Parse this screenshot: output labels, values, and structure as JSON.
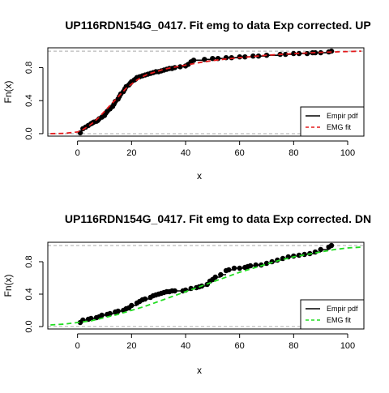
{
  "chart_data": [
    {
      "type": "line",
      "title": "UP116RDN154G_0417. Fit emg to data Exp corrected. UP",
      "xlabel": "x",
      "ylabel": "Fn(x)",
      "xlim": [
        -11,
        106
      ],
      "ylim": [
        -0.03,
        1.04
      ],
      "xticks": [
        0,
        20,
        40,
        60,
        80,
        100
      ],
      "yticks": [
        0.0,
        0.4,
        0.8
      ],
      "ytick_labels": [
        "0.0",
        "0.4",
        "0.8"
      ],
      "hlines": [
        0,
        1
      ],
      "grid": false,
      "legend_position": "bottom-right",
      "fit_color": "#e31a1c",
      "series": [
        {
          "name": "Empir pdf",
          "kind": "step",
          "color": "#000000",
          "x": [
            1,
            2,
            3,
            4,
            5,
            5.5,
            6,
            7,
            7.5,
            8,
            9,
            10,
            10.5,
            11,
            12,
            13,
            13.5,
            14,
            15,
            15.5,
            16,
            17,
            17.5,
            18,
            19,
            19.5,
            20,
            21,
            21.5,
            22,
            23,
            24,
            25,
            26,
            27,
            28,
            29,
            30,
            31,
            32,
            33,
            34,
            35,
            36,
            38,
            40,
            41,
            42,
            43,
            47,
            50,
            52,
            55,
            57,
            60,
            62,
            65,
            67,
            70,
            75,
            77,
            80,
            82,
            85,
            87,
            88,
            90,
            93,
            94
          ],
          "y": [
            0.01,
            0.06,
            0.08,
            0.1,
            0.12,
            0.13,
            0.14,
            0.15,
            0.16,
            0.18,
            0.2,
            0.22,
            0.25,
            0.27,
            0.3,
            0.33,
            0.36,
            0.39,
            0.42,
            0.45,
            0.48,
            0.51,
            0.54,
            0.57,
            0.59,
            0.61,
            0.63,
            0.65,
            0.66,
            0.68,
            0.69,
            0.7,
            0.71,
            0.72,
            0.73,
            0.74,
            0.75,
            0.75,
            0.76,
            0.77,
            0.78,
            0.79,
            0.79,
            0.8,
            0.81,
            0.82,
            0.84,
            0.87,
            0.89,
            0.9,
            0.91,
            0.91,
            0.92,
            0.92,
            0.93,
            0.93,
            0.94,
            0.94,
            0.95,
            0.96,
            0.96,
            0.97,
            0.97,
            0.97,
            0.98,
            0.98,
            0.98,
            0.99,
            1.0
          ]
        },
        {
          "name": "EMG fit",
          "kind": "dashed",
          "color": "#e31a1c",
          "x": [
            -10,
            -5,
            0,
            2,
            4,
            6,
            8,
            10,
            12,
            14,
            16,
            18,
            20,
            22,
            24,
            26,
            28,
            30,
            32,
            35,
            40,
            45,
            50,
            55,
            60,
            70,
            80,
            90,
            100,
            105
          ],
          "y": [
            0.0,
            0.003,
            0.02,
            0.05,
            0.09,
            0.14,
            0.2,
            0.27,
            0.34,
            0.41,
            0.48,
            0.55,
            0.6,
            0.65,
            0.69,
            0.72,
            0.74,
            0.76,
            0.78,
            0.8,
            0.83,
            0.86,
            0.885,
            0.905,
            0.92,
            0.95,
            0.97,
            0.985,
            0.995,
            1.0
          ]
        }
      ]
    },
    {
      "type": "line",
      "title": "UP116RDN154G_0417. Fit emg to data Exp corrected. DN",
      "xlabel": "x",
      "ylabel": "Fn(x)",
      "xlim": [
        -11,
        106
      ],
      "ylim": [
        -0.03,
        1.04
      ],
      "xticks": [
        0,
        20,
        40,
        60,
        80,
        100
      ],
      "yticks": [
        0.0,
        0.4,
        0.8
      ],
      "ytick_labels": [
        "0.0",
        "0.4",
        "0.8"
      ],
      "hlines": [
        0,
        1
      ],
      "grid": false,
      "legend_position": "bottom-right",
      "fit_color": "#22dd22",
      "series": [
        {
          "name": "Empir pdf",
          "kind": "step",
          "color": "#000000",
          "x": [
            1,
            2,
            4,
            5,
            7,
            8,
            9,
            11,
            12,
            14,
            15,
            17,
            18,
            19,
            20,
            22,
            23,
            24,
            25,
            27,
            28,
            29,
            30,
            31,
            32,
            33,
            34,
            35,
            36,
            39,
            40,
            42,
            44,
            45,
            46,
            48,
            49,
            50,
            51,
            53,
            55,
            56,
            58,
            60,
            62,
            63,
            64,
            66,
            68,
            70,
            72,
            74,
            76,
            78,
            80,
            82,
            84,
            86,
            88,
            90,
            93,
            94
          ],
          "y": [
            0.05,
            0.08,
            0.09,
            0.1,
            0.11,
            0.12,
            0.14,
            0.15,
            0.16,
            0.18,
            0.19,
            0.2,
            0.22,
            0.23,
            0.26,
            0.29,
            0.31,
            0.33,
            0.34,
            0.36,
            0.38,
            0.39,
            0.4,
            0.41,
            0.42,
            0.43,
            0.43,
            0.44,
            0.44,
            0.44,
            0.45,
            0.47,
            0.48,
            0.49,
            0.5,
            0.52,
            0.56,
            0.58,
            0.61,
            0.64,
            0.69,
            0.7,
            0.72,
            0.72,
            0.73,
            0.74,
            0.75,
            0.76,
            0.76,
            0.78,
            0.8,
            0.82,
            0.84,
            0.86,
            0.87,
            0.88,
            0.89,
            0.9,
            0.92,
            0.95,
            0.98,
            1.0
          ]
        },
        {
          "name": "EMG fit",
          "kind": "dashed",
          "color": "#22dd22",
          "x": [
            -10,
            -5,
            0,
            5,
            10,
            15,
            20,
            25,
            30,
            35,
            40,
            45,
            50,
            55,
            60,
            65,
            70,
            75,
            80,
            85,
            90,
            95,
            100,
            105
          ],
          "y": [
            0.02,
            0.03,
            0.05,
            0.07,
            0.11,
            0.15,
            0.2,
            0.25,
            0.31,
            0.37,
            0.43,
            0.49,
            0.55,
            0.61,
            0.67,
            0.72,
            0.77,
            0.82,
            0.86,
            0.89,
            0.92,
            0.95,
            0.97,
            0.98
          ]
        }
      ]
    }
  ]
}
